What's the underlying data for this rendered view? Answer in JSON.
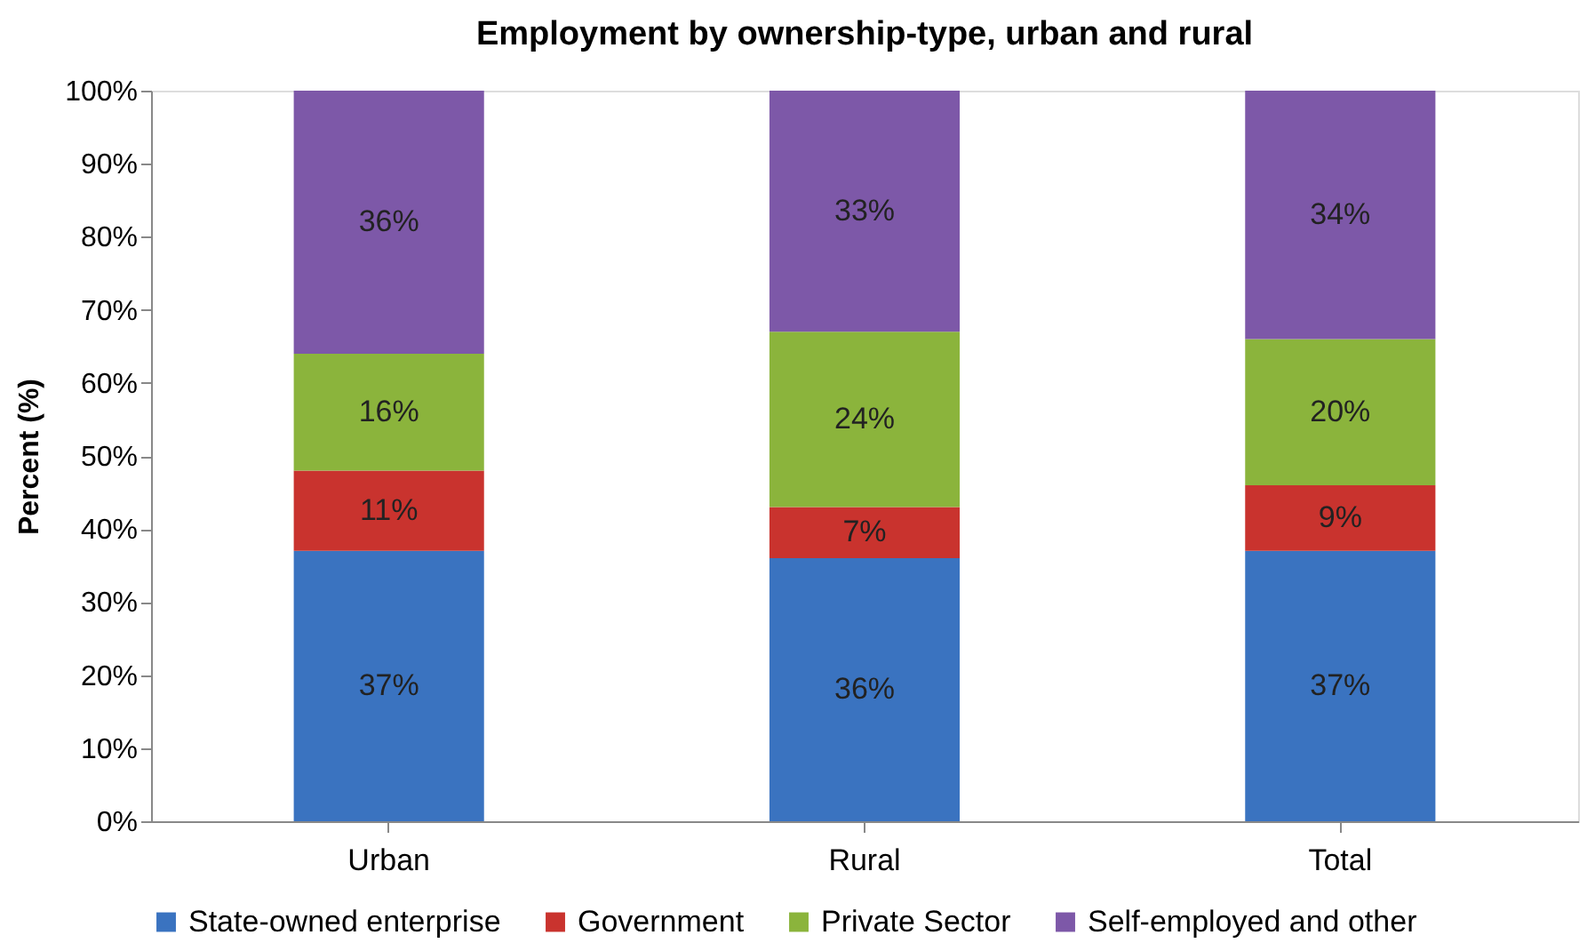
{
  "chart_data": {
    "type": "bar",
    "title": "Employment by ownership-type, urban and rural",
    "ylabel": "Percent (%)",
    "categories": [
      "Urban",
      "Rural",
      "Total"
    ],
    "stacked": true,
    "series": [
      {
        "name": "State-owned enterprise",
        "color": "#3a73c0",
        "values": [
          37,
          36,
          37
        ],
        "value_labels": [
          "37%",
          "36%",
          "37%"
        ]
      },
      {
        "name": "Government",
        "color": "#c9332e",
        "values": [
          11,
          7,
          9
        ],
        "value_labels": [
          "11%",
          "7%",
          "9%"
        ]
      },
      {
        "name": "Private Sector",
        "color": "#8bb43c",
        "values": [
          16,
          24,
          20
        ],
        "value_labels": [
          "16%",
          "24%",
          "20%"
        ]
      },
      {
        "name": "Self-employed and other",
        "color": "#7d58a8",
        "values": [
          36,
          33,
          34
        ],
        "value_labels": [
          "36%",
          "33%",
          "34%"
        ]
      }
    ],
    "ylim": [
      0,
      100
    ],
    "yticks": [
      {
        "value": 0,
        "label": "0%"
      },
      {
        "value": 10,
        "label": "10%"
      },
      {
        "value": 20,
        "label": "20%"
      },
      {
        "value": 30,
        "label": "30%"
      },
      {
        "value": 40,
        "label": "40%"
      },
      {
        "value": 50,
        "label": "50%"
      },
      {
        "value": 60,
        "label": "60%"
      },
      {
        "value": 70,
        "label": "70%"
      },
      {
        "value": 80,
        "label": "80%"
      },
      {
        "value": 90,
        "label": "90%"
      },
      {
        "value": 100,
        "label": "100%"
      }
    ],
    "grid": false,
    "legend": "bottom"
  }
}
